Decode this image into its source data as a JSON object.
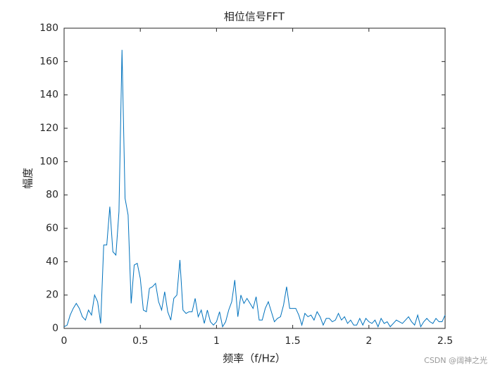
{
  "chart_data": {
    "type": "line",
    "title": "相位信号FFT",
    "xlabel": "频率（f/Hz）",
    "ylabel": "幅度",
    "watermark": "CSDN @阔神之光",
    "x": [
      0,
      0.02,
      0.04,
      0.06,
      0.08,
      0.1,
      0.12,
      0.14,
      0.16,
      0.18,
      0.2,
      0.22,
      0.24,
      0.26,
      0.28,
      0.3,
      0.32,
      0.34,
      0.36,
      0.38,
      0.4,
      0.42,
      0.44,
      0.46,
      0.48,
      0.5,
      0.52,
      0.54,
      0.56,
      0.58,
      0.6,
      0.62,
      0.64,
      0.66,
      0.68,
      0.7,
      0.72,
      0.74,
      0.76,
      0.78,
      0.8,
      0.82,
      0.84,
      0.86,
      0.88,
      0.9,
      0.92,
      0.94,
      0.96,
      0.98,
      1,
      1.02,
      1.04,
      1.06,
      1.08,
      1.1,
      1.12,
      1.14,
      1.16,
      1.18,
      1.2,
      1.22,
      1.24,
      1.26,
      1.28,
      1.3,
      1.32,
      1.34,
      1.36,
      1.38,
      1.4,
      1.42,
      1.44,
      1.46,
      1.48,
      1.5,
      1.52,
      1.54,
      1.56,
      1.58,
      1.6,
      1.62,
      1.64,
      1.66,
      1.68,
      1.7,
      1.72,
      1.74,
      1.76,
      1.78,
      1.8,
      1.82,
      1.84,
      1.86,
      1.88,
      1.9,
      1.92,
      1.94,
      1.96,
      1.98,
      2,
      2.02,
      2.04,
      2.06,
      2.08,
      2.1,
      2.12,
      2.14,
      2.16,
      2.18,
      2.2,
      2.22,
      2.24,
      2.26,
      2.28,
      2.3,
      2.32,
      2.34,
      2.36,
      2.38,
      2.4,
      2.42,
      2.44,
      2.46,
      2.48,
      2.5
    ],
    "series": [
      {
        "name": "FFT",
        "color": "#0072bd",
        "values": [
          1,
          2,
          8,
          12,
          15,
          12,
          7,
          5,
          11,
          8,
          20,
          16,
          3,
          50,
          50,
          73,
          46,
          44,
          70,
          167,
          78,
          68,
          15,
          38,
          39,
          30,
          11,
          10,
          24,
          25,
          27,
          16,
          11,
          22,
          10,
          5,
          18,
          20,
          41,
          11,
          9,
          10,
          10,
          18,
          7,
          11,
          3,
          11,
          4,
          2,
          4,
          10,
          1,
          4,
          11,
          16,
          29,
          7,
          20,
          15,
          18,
          15,
          12,
          19,
          5,
          5,
          12,
          16,
          10,
          4,
          6,
          7,
          14,
          25,
          12,
          12,
          12,
          8,
          2,
          9,
          7,
          8,
          5,
          10,
          7,
          2,
          6,
          6,
          4,
          5,
          9,
          5,
          7,
          3,
          5,
          2,
          2,
          6,
          2,
          6,
          4,
          3,
          5,
          1,
          6,
          3,
          4,
          1,
          3,
          5,
          4,
          3,
          5,
          7,
          4,
          2,
          8,
          1,
          4,
          6,
          4,
          3,
          6,
          4,
          4,
          8
        ]
      }
    ],
    "xlim": [
      0,
      2.5
    ],
    "xticks": [
      0,
      0.5,
      1,
      1.5,
      2,
      2.5
    ],
    "ylim": [
      0,
      180
    ],
    "yticks": [
      0,
      20,
      40,
      60,
      80,
      100,
      120,
      140,
      160,
      180
    ],
    "grid": false
  }
}
